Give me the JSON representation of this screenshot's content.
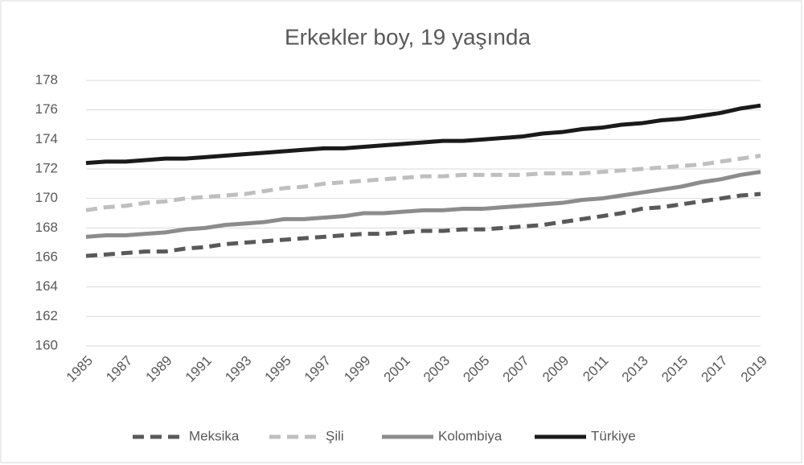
{
  "chart_data": {
    "type": "line",
    "title": "Erkekler boy, 19 yaşında",
    "x": [
      1985,
      1986,
      1987,
      1988,
      1989,
      1990,
      1991,
      1992,
      1993,
      1994,
      1995,
      1996,
      1997,
      1998,
      1999,
      2000,
      2001,
      2002,
      2003,
      2004,
      2005,
      2006,
      2007,
      2008,
      2009,
      2010,
      2011,
      2012,
      2013,
      2014,
      2015,
      2016,
      2017,
      2018,
      2019
    ],
    "xlim": [
      1985,
      2019
    ],
    "xticks": [
      1985,
      1987,
      1989,
      1991,
      1993,
      1995,
      1997,
      1999,
      2001,
      2003,
      2005,
      2007,
      2009,
      2011,
      2013,
      2015,
      2017,
      2019
    ],
    "ylim": [
      160,
      178
    ],
    "yticks": [
      160,
      162,
      164,
      166,
      168,
      170,
      172,
      174,
      176,
      178
    ],
    "grid": true,
    "legend": "bottom",
    "series": [
      {
        "name": "Meksika",
        "color": "#595959",
        "dash": true,
        "values": [
          166.1,
          166.2,
          166.3,
          166.4,
          166.4,
          166.6,
          166.7,
          166.9,
          167.0,
          167.1,
          167.2,
          167.3,
          167.4,
          167.5,
          167.6,
          167.6,
          167.7,
          167.8,
          167.8,
          167.9,
          167.9,
          168.0,
          168.1,
          168.2,
          168.4,
          168.6,
          168.8,
          169.0,
          169.3,
          169.4,
          169.6,
          169.8,
          170.0,
          170.2,
          170.3
        ]
      },
      {
        "name": "Şili",
        "color": "#bfbfbf",
        "dash": true,
        "values": [
          169.2,
          169.4,
          169.5,
          169.7,
          169.8,
          170.0,
          170.1,
          170.2,
          170.3,
          170.5,
          170.7,
          170.8,
          171.0,
          171.1,
          171.2,
          171.3,
          171.4,
          171.5,
          171.5,
          171.6,
          171.6,
          171.6,
          171.6,
          171.7,
          171.7,
          171.7,
          171.8,
          171.9,
          172.0,
          172.1,
          172.2,
          172.3,
          172.5,
          172.7,
          172.9
        ]
      },
      {
        "name": "Kolombiya",
        "color": "#8c8c8c",
        "dash": false,
        "values": [
          167.4,
          167.5,
          167.5,
          167.6,
          167.7,
          167.9,
          168.0,
          168.2,
          168.3,
          168.4,
          168.6,
          168.6,
          168.7,
          168.8,
          169.0,
          169.0,
          169.1,
          169.2,
          169.2,
          169.3,
          169.3,
          169.4,
          169.5,
          169.6,
          169.7,
          169.9,
          170.0,
          170.2,
          170.4,
          170.6,
          170.8,
          171.1,
          171.3,
          171.6,
          171.8
        ]
      },
      {
        "name": "Türkiye",
        "color": "#1a1a1a",
        "dash": false,
        "values": [
          172.4,
          172.5,
          172.5,
          172.6,
          172.7,
          172.7,
          172.8,
          172.9,
          173.0,
          173.1,
          173.2,
          173.3,
          173.4,
          173.4,
          173.5,
          173.6,
          173.7,
          173.8,
          173.9,
          173.9,
          174.0,
          174.1,
          174.2,
          174.4,
          174.5,
          174.7,
          174.8,
          175.0,
          175.1,
          175.3,
          175.4,
          175.6,
          175.8,
          176.1,
          176.3
        ]
      }
    ]
  }
}
